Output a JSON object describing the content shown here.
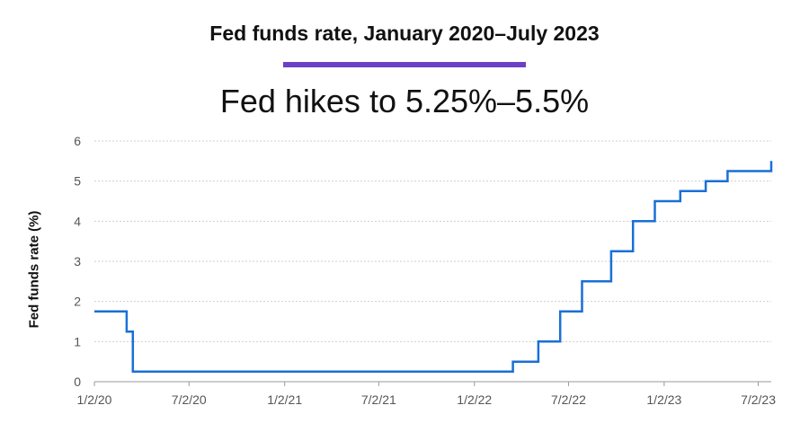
{
  "header": {
    "title": "Fed funds rate, January 2020–July 2023",
    "subtitle": "Fed hikes to 5.25%–5.5%",
    "accent_color": "#6c3fc7"
  },
  "chart_data": {
    "type": "line",
    "step": true,
    "title": "Fed funds rate, January 2020–July 2023",
    "subtitle": "Fed hikes to 5.25%–5.5%",
    "xlabel": "",
    "ylabel": "Fed funds rate (%)",
    "ylim": [
      0,
      6
    ],
    "xlim": [
      "2020-01-02",
      "2023-07-27"
    ],
    "y_ticks": [
      0,
      1,
      2,
      3,
      4,
      5,
      6
    ],
    "x_ticks": [
      {
        "date": "2020-01-02",
        "label": "1/2/20"
      },
      {
        "date": "2020-07-02",
        "label": "7/2/20"
      },
      {
        "date": "2021-01-02",
        "label": "1/2/21"
      },
      {
        "date": "2021-07-02",
        "label": "7/2/21"
      },
      {
        "date": "2022-01-02",
        "label": "1/2/22"
      },
      {
        "date": "2022-07-02",
        "label": "7/2/22"
      },
      {
        "date": "2023-01-02",
        "label": "1/2/23"
      },
      {
        "date": "2023-07-02",
        "label": "7/2/23"
      }
    ],
    "grid": true,
    "line_color": "#1a6fd6",
    "series": [
      {
        "x": [
          "2020-01-02",
          "2020-03-04",
          "2020-03-16",
          "2022-03-17",
          "2022-05-05",
          "2022-06-16",
          "2022-07-28",
          "2022-09-22",
          "2022-11-03",
          "2022-12-15",
          "2023-02-02",
          "2023-03-23",
          "2023-05-04",
          "2023-07-27"
        ],
        "y": [
          1.75,
          1.25,
          0.25,
          0.5,
          1.0,
          1.75,
          2.5,
          3.25,
          4.0,
          4.5,
          4.75,
          5.0,
          5.25,
          5.5
        ]
      }
    ]
  }
}
